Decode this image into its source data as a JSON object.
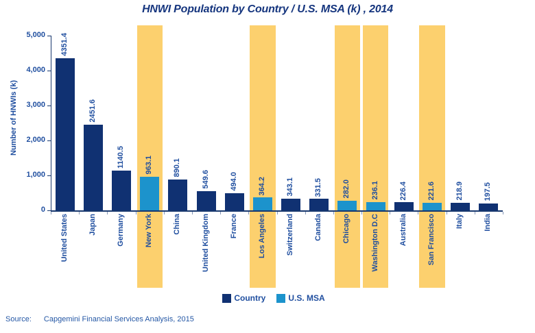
{
  "title": "HNWI Population by Country / U.S. MSA (k) , 2014",
  "source": {
    "label": "Source:",
    "text": "Capgemini Financial Services Analysis, 2015"
  },
  "legend": [
    {
      "label": "Country",
      "series": "country",
      "color": "#103172"
    },
    {
      "label": "U.S. MSA",
      "series": "msa",
      "color": "#1C93CC"
    }
  ],
  "colors": {
    "country": "#103172",
    "msa": "#1C93CC",
    "band": "#FCD06E",
    "axis": "#17376E",
    "label": "#1F4E9F",
    "title": "#15357E"
  },
  "chart_data": {
    "type": "bar",
    "title": "HNWI Population by Country / U.S. MSA (k) , 2014",
    "xlabel": "",
    "ylabel": "Number of HNWIs (k)",
    "ylim": [
      0,
      5000
    ],
    "yticks": [
      0,
      1000,
      2000,
      3000,
      4000,
      5000
    ],
    "ytick_labels": [
      "0",
      "1,000",
      "2,000",
      "3,000",
      "4,000",
      "5,000"
    ],
    "grid": false,
    "legend_position": "bottom",
    "categories": [
      "United States",
      "Japan",
      "Germany",
      "New York",
      "China",
      "United Kingdom",
      "France",
      "Los Angeles",
      "Switzerland",
      "Canada",
      "Chicago",
      "Washington D.C",
      "Australia",
      "San Francisco",
      "Italy",
      "India"
    ],
    "values": [
      4351.4,
      2451.6,
      1140.5,
      963.1,
      890.1,
      549.6,
      494.0,
      364.2,
      343.1,
      331.5,
      282.0,
      236.1,
      226.4,
      221.6,
      218.9,
      197.5
    ],
    "value_labels": [
      "4351.4",
      "2451.6",
      "1140.5",
      "963.1",
      "890.1",
      "549.6",
      "494.0",
      "364.2",
      "343.1",
      "331.5",
      "282.0",
      "236.1",
      "226.4",
      "221.6",
      "218.9",
      "197.5"
    ],
    "series_by_point": [
      "country",
      "country",
      "country",
      "msa",
      "country",
      "country",
      "country",
      "msa",
      "country",
      "country",
      "msa",
      "msa",
      "country",
      "msa",
      "country",
      "country"
    ],
    "highlighted_categories": [
      "New York",
      "Los Angeles",
      "Chicago",
      "Washington D.C",
      "San Francisco"
    ]
  }
}
